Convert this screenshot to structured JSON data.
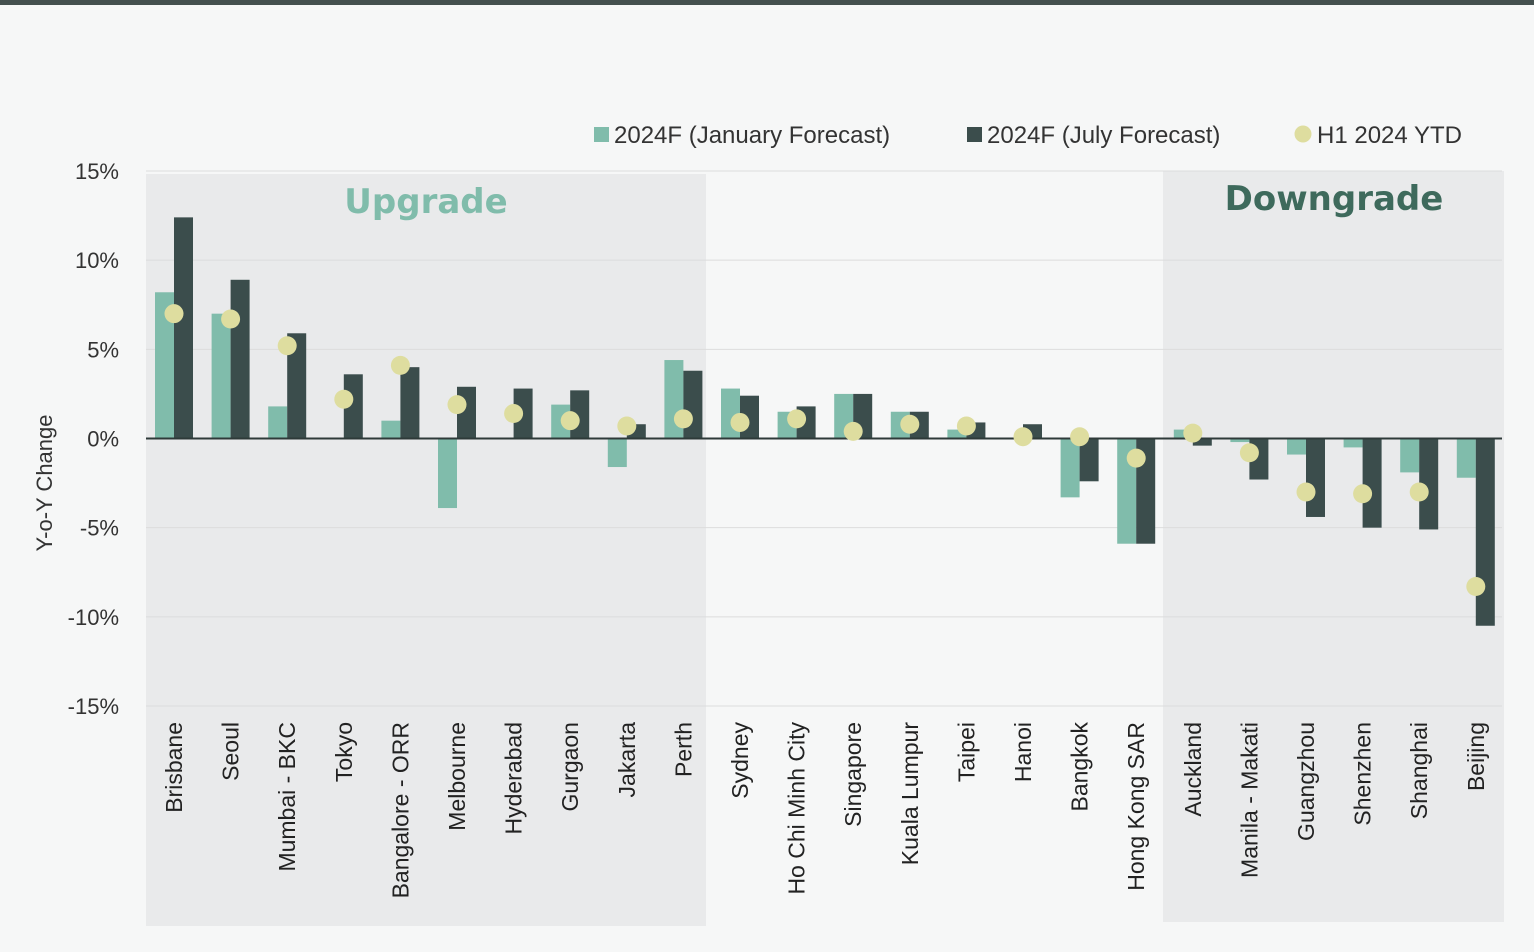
{
  "chart_data": {
    "type": "bar",
    "title": "",
    "xlabel": "",
    "ylabel": "Y-o-Y Change",
    "ylim": [
      -15,
      15
    ],
    "yticks": [
      {
        "value": 15,
        "label": "15%"
      },
      {
        "value": 10,
        "label": "10%"
      },
      {
        "value": 5,
        "label": "5%"
      },
      {
        "value": 0,
        "label": "0%"
      },
      {
        "value": -5,
        "label": "-5%"
      },
      {
        "value": -10,
        "label": "-10%"
      },
      {
        "value": -15,
        "label": "-15%"
      }
    ],
    "categories": [
      "Brisbane",
      "Seoul",
      "Mumbai - BKC",
      "Tokyo",
      "Bangalore - ORR",
      "Melbourne",
      "Hyderabad",
      "Gurgaon",
      "Jakarta",
      "Perth",
      "Sydney",
      "Ho Chi Minh City",
      "Singapore",
      "Kuala Lumpur",
      "Taipei",
      "Hanoi",
      "Bangkok",
      "Hong Kong SAR",
      "Auckland",
      "Manila - Makati",
      "Guangzhou",
      "Shenzhen",
      "Shanghai",
      "Beijing"
    ],
    "series": [
      {
        "name": "2024F (January Forecast)",
        "kind": "bar",
        "color": "#80bcab",
        "values": [
          8.2,
          7.0,
          1.8,
          0.0,
          1.0,
          -3.9,
          0.0,
          1.9,
          -1.6,
          4.4,
          2.8,
          1.5,
          2.5,
          1.5,
          0.5,
          0.0,
          -3.3,
          -5.9,
          0.5,
          -0.2,
          -0.9,
          -0.5,
          -1.9,
          -2.2
        ]
      },
      {
        "name": "2024F (July Forecast)",
        "kind": "bar",
        "color": "#3b4d4c",
        "values": [
          12.4,
          8.9,
          5.9,
          3.6,
          4.0,
          2.9,
          2.8,
          2.7,
          0.8,
          3.8,
          2.4,
          1.8,
          2.5,
          1.5,
          0.9,
          0.8,
          -2.4,
          -5.9,
          -0.4,
          -2.3,
          -4.4,
          -5.0,
          -5.1,
          -10.5
        ]
      },
      {
        "name": "H1 2024 YTD",
        "kind": "dot",
        "color": "#dedd9f",
        "values": [
          7.0,
          6.7,
          5.2,
          2.2,
          4.1,
          1.9,
          1.4,
          1.0,
          0.7,
          1.1,
          0.9,
          1.1,
          0.4,
          0.8,
          0.7,
          0.1,
          0.1,
          -1.1,
          0.3,
          -0.8,
          -3.0,
          -3.1,
          -3.0,
          -8.3
        ]
      }
    ],
    "zones": [
      {
        "name": "Upgrade",
        "from": 0,
        "to": 9,
        "title_color": "#80bcab"
      },
      {
        "name": "Downgrade",
        "from": 18,
        "to": 23,
        "title_color": "#3e6a5c"
      }
    ],
    "legend_position": "top-right",
    "grid": true
  }
}
